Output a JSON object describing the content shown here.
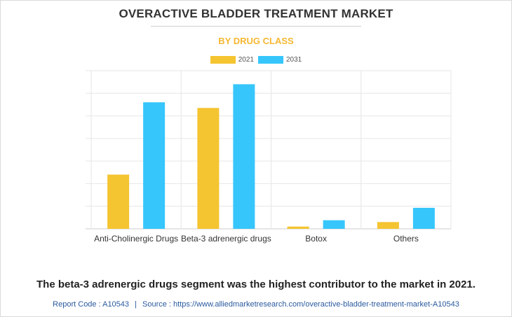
{
  "chart_data": {
    "type": "bar",
    "title": "OVERACTIVE BLADDER TREATMENT MARKET",
    "subtitle": "BY DRUG CLASS",
    "categories": [
      "Anti-Cholinergic Drugs",
      "Beta-3 adrenergic drugs",
      "Botox",
      "Others"
    ],
    "series": [
      {
        "name": "2021",
        "values": [
          2.4,
          5.35,
          0.1,
          0.3
        ]
      },
      {
        "name": "2031",
        "values": [
          5.6,
          6.4,
          0.38,
          0.93
        ]
      }
    ],
    "ylim": [
      0,
      7
    ],
    "xlabel": "",
    "ylabel": "",
    "grid": true,
    "legend_position": "top-center"
  },
  "colors": {
    "series_2021": "#f5c431",
    "series_2031": "#36c6fb",
    "grid": "#e6e6e6",
    "axis": "#cccccc"
  },
  "caption": "The beta-3 adrenergic drugs segment was the highest contributor to the market in 2021.",
  "footer": {
    "report_code_label": "Report Code : A10543",
    "separator": "|",
    "source_label": "Source : https://www.alliedmarketresearch.com/overactive-bladder-treatment-market-A10543"
  }
}
